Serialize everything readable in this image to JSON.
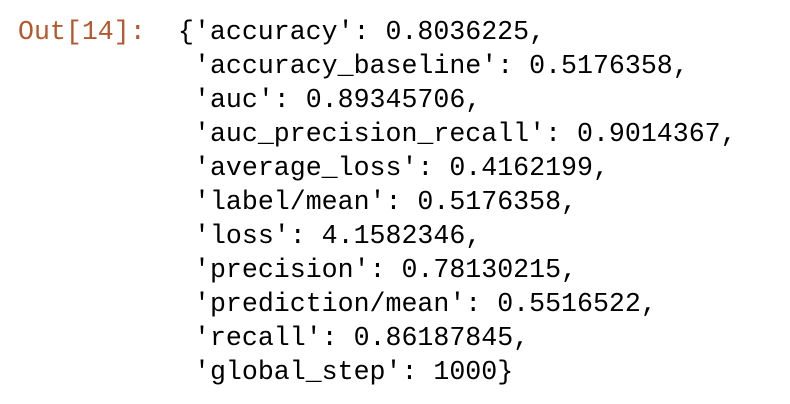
{
  "prompt": "Out[14]:",
  "output": {
    "lines": [
      "{'accuracy': 0.8036225,",
      "'accuracy_baseline': 0.5176358,",
      "'auc': 0.89345706,",
      "'auc_precision_recall': 0.9014367,",
      "'average_loss': 0.4162199,",
      "'label/mean': 0.5176358,",
      "'loss': 4.1582346,",
      "'precision': 0.78130215,",
      "'prediction/mean': 0.5516522,",
      "'recall': 0.86187845,",
      "'global_step': 1000}"
    ]
  }
}
